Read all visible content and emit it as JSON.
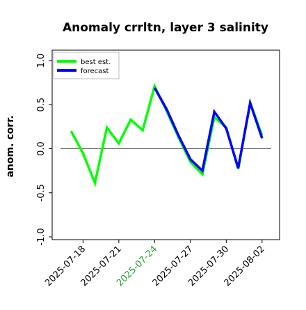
{
  "chart_data": {
    "type": "line",
    "title": "Anomaly crrltn, layer 3 salinity",
    "xlabel": "",
    "ylabel": "anom. corr.",
    "ylim": [
      -1.0,
      1.0
    ],
    "yticks": [
      "1.0",
      "0.5",
      "0.0",
      "-0.5",
      "-1.0"
    ],
    "ytick_values": [
      1.0,
      0.5,
      0.0,
      -0.5,
      -1.0
    ],
    "xticks": [
      {
        "label": "2025-07-18",
        "color": "#000000"
      },
      {
        "label": "2025-07-21",
        "color": "#000000"
      },
      {
        "label": "2025-07-24",
        "color": "#2a9d2a"
      },
      {
        "label": "2025-07-27",
        "color": "#000000"
      },
      {
        "label": "2025-07-30",
        "color": "#000000"
      },
      {
        "label": "2025-08-02",
        "color": "#000000"
      }
    ],
    "xlim": [
      "2025-07-16",
      "2025-08-03"
    ],
    "x": [
      "2025-07-17",
      "2025-07-18",
      "2025-07-19",
      "2025-07-20",
      "2025-07-21",
      "2025-07-22",
      "2025-07-23",
      "2025-07-24",
      "2025-07-25",
      "2025-07-26",
      "2025-07-27",
      "2025-07-28",
      "2025-07-29",
      "2025-07-30",
      "2025-07-31",
      "2025-08-01",
      "2025-08-02"
    ],
    "series": [
      {
        "name": "best est.",
        "color": "#00ff00",
        "values": [
          0.2,
          -0.05,
          -0.39,
          0.24,
          0.06,
          0.33,
          0.21,
          0.71,
          0.43,
          0.13,
          -0.15,
          -0.29,
          0.36,
          0.24,
          -0.23,
          0.52,
          0.15
        ]
      },
      {
        "name": "forecast",
        "color": "#0000ff",
        "values": [
          null,
          null,
          null,
          null,
          null,
          null,
          null,
          0.69,
          0.45,
          0.15,
          -0.12,
          -0.25,
          0.42,
          0.23,
          -0.22,
          0.52,
          0.12
        ]
      }
    ],
    "reference_line": 0.0,
    "grid": false,
    "legend_position": "top-left"
  }
}
